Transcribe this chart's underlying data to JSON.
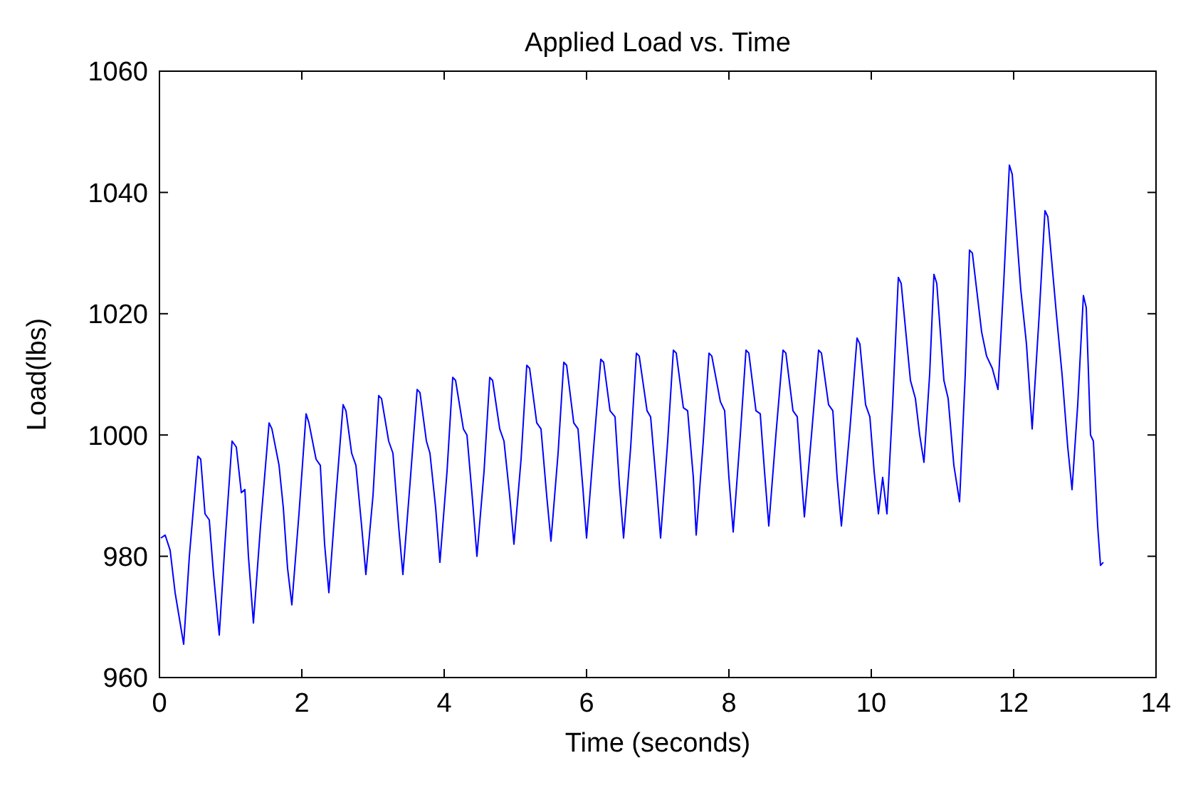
{
  "chart_data": {
    "type": "line",
    "title": "Applied Load vs. Time",
    "xlabel": "Time (seconds)",
    "ylabel": "Load(lbs)",
    "xlim": [
      0,
      14
    ],
    "xticks": [
      0,
      2,
      4,
      6,
      8,
      10,
      12,
      14
    ],
    "ylim": [
      960,
      1060
    ],
    "yticks": [
      960,
      980,
      1000,
      1020,
      1040,
      1060
    ],
    "grid": false,
    "marker": "none",
    "line_style": "solid",
    "series": [
      {
        "color": "#0000ff",
        "x": [
          0.02,
          0.08,
          0.15,
          0.22,
          0.34,
          0.42,
          0.54,
          0.58,
          0.64,
          0.7,
          0.76,
          0.84,
          0.92,
          1.02,
          1.08,
          1.15,
          1.2,
          1.25,
          1.32,
          1.42,
          1.54,
          1.58,
          1.68,
          1.74,
          1.8,
          1.86,
          1.96,
          2.06,
          2.1,
          2.2,
          2.26,
          2.32,
          2.38,
          2.48,
          2.58,
          2.62,
          2.7,
          2.76,
          2.84,
          2.9,
          3.0,
          3.08,
          3.12,
          3.22,
          3.28,
          3.36,
          3.42,
          3.52,
          3.62,
          3.66,
          3.75,
          3.8,
          3.88,
          3.94,
          4.04,
          4.12,
          4.16,
          4.27,
          4.32,
          4.4,
          4.46,
          4.56,
          4.64,
          4.68,
          4.78,
          4.84,
          4.92,
          4.98,
          5.08,
          5.16,
          5.2,
          5.3,
          5.36,
          5.44,
          5.5,
          5.6,
          5.68,
          5.72,
          5.82,
          5.88,
          5.95,
          6.0,
          6.1,
          6.2,
          6.24,
          6.33,
          6.4,
          6.46,
          6.52,
          6.62,
          6.7,
          6.74,
          6.85,
          6.9,
          6.98,
          7.04,
          7.14,
          7.22,
          7.26,
          7.36,
          7.42,
          7.5,
          7.54,
          7.64,
          7.72,
          7.76,
          7.88,
          7.94,
          8.0,
          8.06,
          8.16,
          8.24,
          8.28,
          8.38,
          8.44,
          8.5,
          8.56,
          8.66,
          8.76,
          8.8,
          8.9,
          8.96,
          9.02,
          9.06,
          9.16,
          9.26,
          9.3,
          9.4,
          9.46,
          9.52,
          9.58,
          9.7,
          9.8,
          9.84,
          9.92,
          9.98,
          10.04,
          10.1,
          10.16,
          10.22,
          10.3,
          10.38,
          10.42,
          10.55,
          10.62,
          10.68,
          10.74,
          10.82,
          10.88,
          10.92,
          11.02,
          11.08,
          11.16,
          11.24,
          11.32,
          11.38,
          11.42,
          11.55,
          11.62,
          11.7,
          11.78,
          11.86,
          11.94,
          11.98,
          12.1,
          12.18,
          12.26,
          12.36,
          12.44,
          12.48,
          12.6,
          12.68,
          12.76,
          12.82,
          12.9,
          12.98,
          13.02,
          13.08,
          13.12,
          13.18,
          13.22,
          13.26
        ],
        "values": [
          983,
          983.5,
          981,
          974,
          965.5,
          980,
          996.5,
          996,
          987,
          986,
          977,
          967,
          982,
          999,
          998,
          990.5,
          991,
          980,
          969,
          985,
          1002,
          1001,
          995,
          988,
          978,
          972,
          987,
          1003.5,
          1002,
          996,
          995,
          982,
          974,
          990,
          1005,
          1004,
          997,
          995,
          985,
          977,
          990,
          1006.5,
          1006,
          999,
          997,
          985,
          977,
          992,
          1007.5,
          1007,
          999,
          997,
          988,
          979,
          994,
          1009.5,
          1009,
          1001,
          1000,
          989,
          980,
          994,
          1009.5,
          1009,
          1001,
          999,
          990,
          982,
          996,
          1011.5,
          1011,
          1002,
          1001,
          990,
          982.5,
          997,
          1012,
          1011.5,
          1002,
          1001,
          991,
          983,
          998,
          1012.5,
          1012,
          1004,
          1003,
          992,
          983,
          998,
          1013.5,
          1013,
          1004,
          1003,
          992,
          983,
          999,
          1014,
          1013.5,
          1004.5,
          1004,
          993,
          983.5,
          999,
          1013.5,
          1013,
          1005.5,
          1004,
          993,
          984,
          1000,
          1014,
          1013.5,
          1004,
          1003.5,
          994,
          985,
          1000,
          1014,
          1013.5,
          1004,
          1003,
          993,
          986.5,
          1000,
          1014,
          1013.5,
          1005,
          1004,
          993,
          985,
          1001,
          1016,
          1015,
          1005,
          1003,
          994,
          987,
          993,
          987,
          1005,
          1026,
          1025,
          1009,
          1006,
          1000,
          995.5,
          1010,
          1026.5,
          1025,
          1009,
          1006,
          995,
          989,
          1010,
          1030.5,
          1030,
          1017,
          1013,
          1011,
          1007.5,
          1025,
          1044.5,
          1043,
          1024,
          1015,
          1001,
          1020,
          1037,
          1036,
          1020,
          1010,
          998,
          991,
          1005,
          1023,
          1021,
          1000,
          999,
          985,
          978.5,
          979
        ]
      }
    ]
  }
}
